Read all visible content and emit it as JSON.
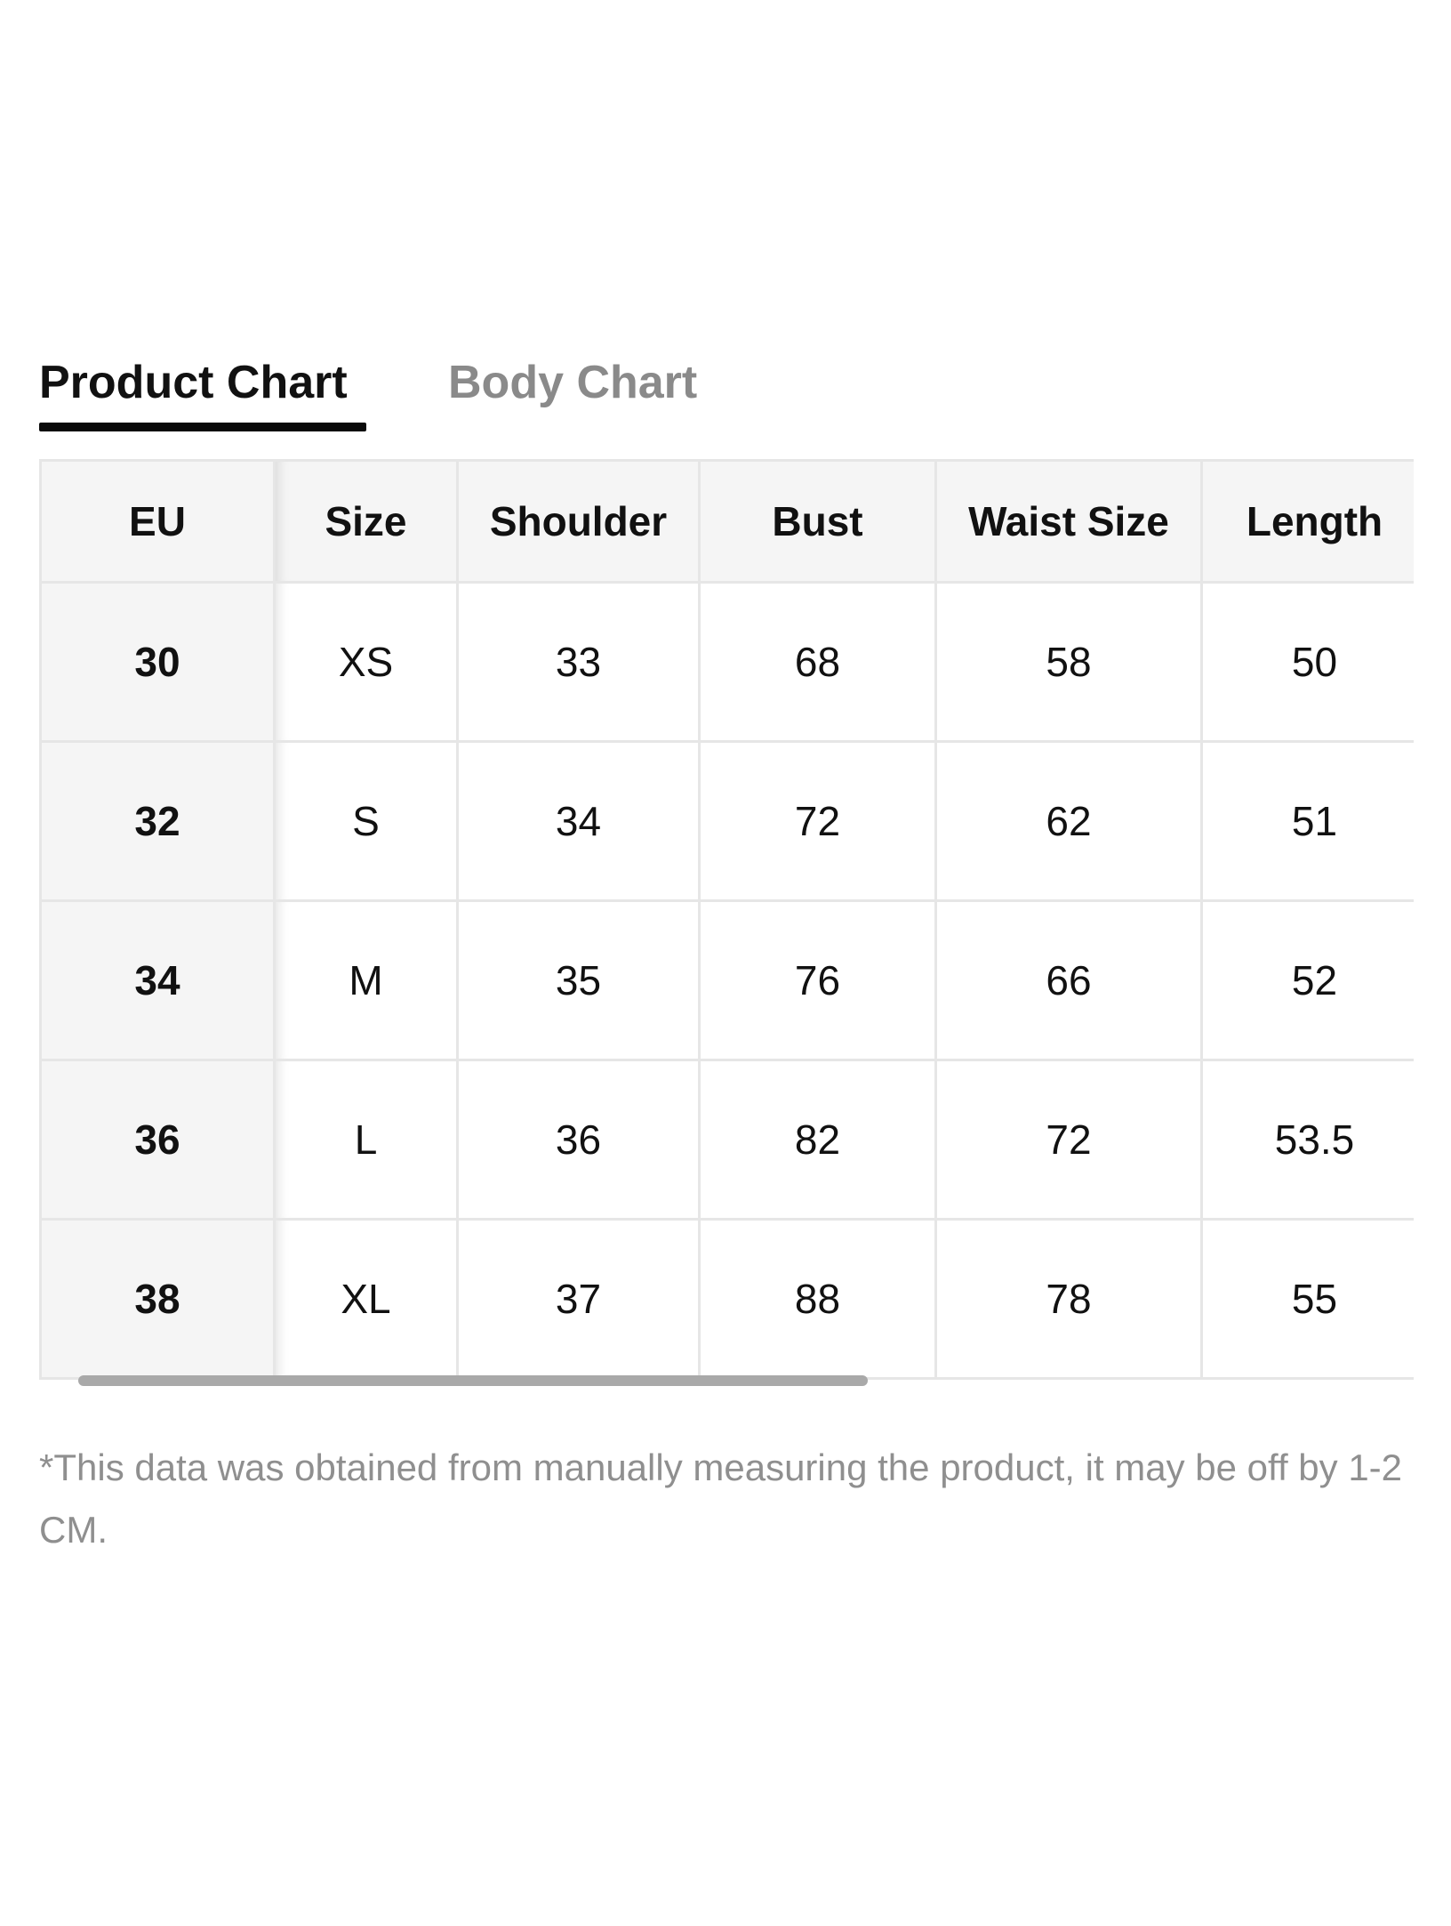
{
  "tabs": {
    "product": "Product Chart",
    "body": "Body Chart",
    "active": "product"
  },
  "table": {
    "headers": [
      "EU",
      "Size",
      "Shoulder",
      "Bust",
      "Waist Size",
      "Length"
    ],
    "rows": [
      [
        "30",
        "XS",
        "33",
        "68",
        "58",
        "50"
      ],
      [
        "32",
        "S",
        "34",
        "72",
        "62",
        "51"
      ],
      [
        "34",
        "M",
        "35",
        "76",
        "66",
        "52"
      ],
      [
        "36",
        "L",
        "36",
        "82",
        "72",
        "53.5"
      ],
      [
        "38",
        "XL",
        "37",
        "88",
        "78",
        "55"
      ]
    ]
  },
  "note": "*This data was obtained from manually measuring the product, it may be off by 1-2 CM.",
  "colors": {
    "header_bg": "#f5f5f5",
    "border": "#e6e6e6",
    "active_tab": "#111111",
    "inactive_tab": "#8a8a8a",
    "note_text": "#8f8f8f",
    "scrollbar": "#a9a9a9"
  }
}
